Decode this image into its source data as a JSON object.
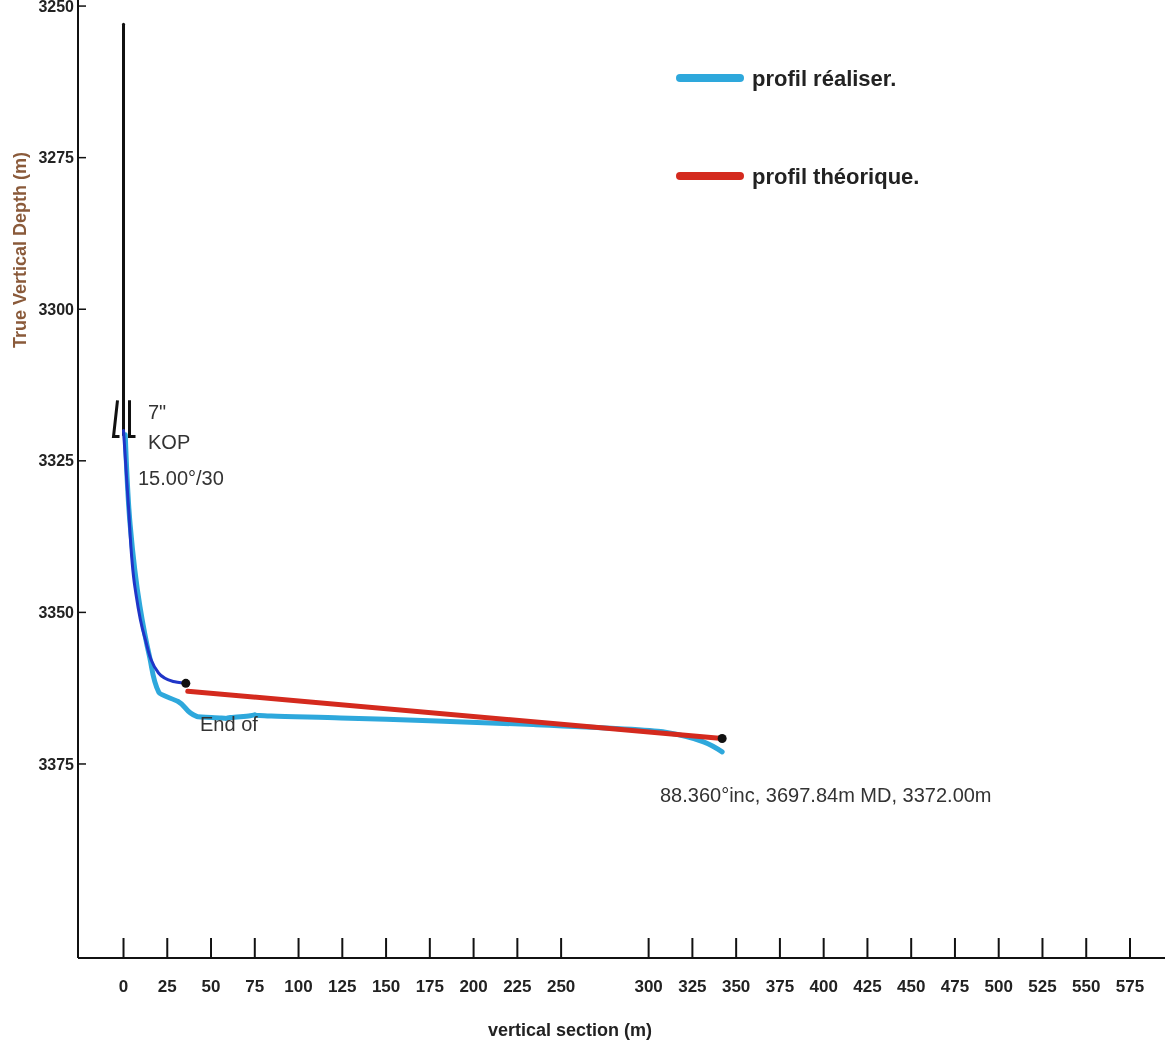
{
  "chart_data": {
    "type": "line",
    "xlabel": "vertical section (m)",
    "ylabel": "True Vertical Depth (m)",
    "xlim": [
      -26,
      595
    ],
    "ylim": [
      3407,
      3249
    ],
    "xticks": [
      0,
      25,
      50,
      75,
      100,
      125,
      150,
      175,
      200,
      225,
      250,
      300,
      325,
      350,
      375,
      400,
      425,
      450,
      475,
      500,
      525,
      550,
      575
    ],
    "yticks": [
      3250,
      3275,
      3300,
      3325,
      3350,
      3375
    ],
    "grid": false,
    "legend": "top right",
    "series": [
      {
        "color": "#111111",
        "x": [
          0,
          0
        ],
        "values": [
          3253,
          3320.7
        ]
      },
      {
        "color": "#1f35c8",
        "x": [
          0,
          2.7,
          6.6,
          12,
          20,
          28.4,
          35.6
        ],
        "values": [
          3320,
          3332,
          3346,
          3354,
          3360,
          3361.4,
          3361.7
        ]
      },
      {
        "name": "profil réaliser.",
        "color": "#2ea8dc",
        "x": [
          1,
          3.8,
          9.3,
          14.8,
          20.2,
          31.2,
          42.1,
          58.5,
          75,
          124,
          179,
          234,
          308,
          342
        ],
        "values": [
          3320.7,
          3335.6,
          3348.9,
          3357.2,
          3363.2,
          3364.7,
          3367.2,
          3367.5,
          3366.9,
          3367.4,
          3367.9,
          3368.5,
          3369.7,
          3373
        ]
      },
      {
        "name": "profil théorique.",
        "color": "#d42a1e",
        "x": [
          36.7,
          342
        ],
        "values": [
          3363,
          3370.8
        ]
      },
      {
        "type": "scatter",
        "color": "#111111",
        "x": [
          35.6,
          342
        ],
        "values": [
          3361.7,
          3370.8
        ]
      }
    ],
    "annotations": [
      "7\"",
      "KOP",
      "15.00°/30",
      "End of",
      "88.360°inc, 3697.84m MD, 3372.00m"
    ]
  }
}
